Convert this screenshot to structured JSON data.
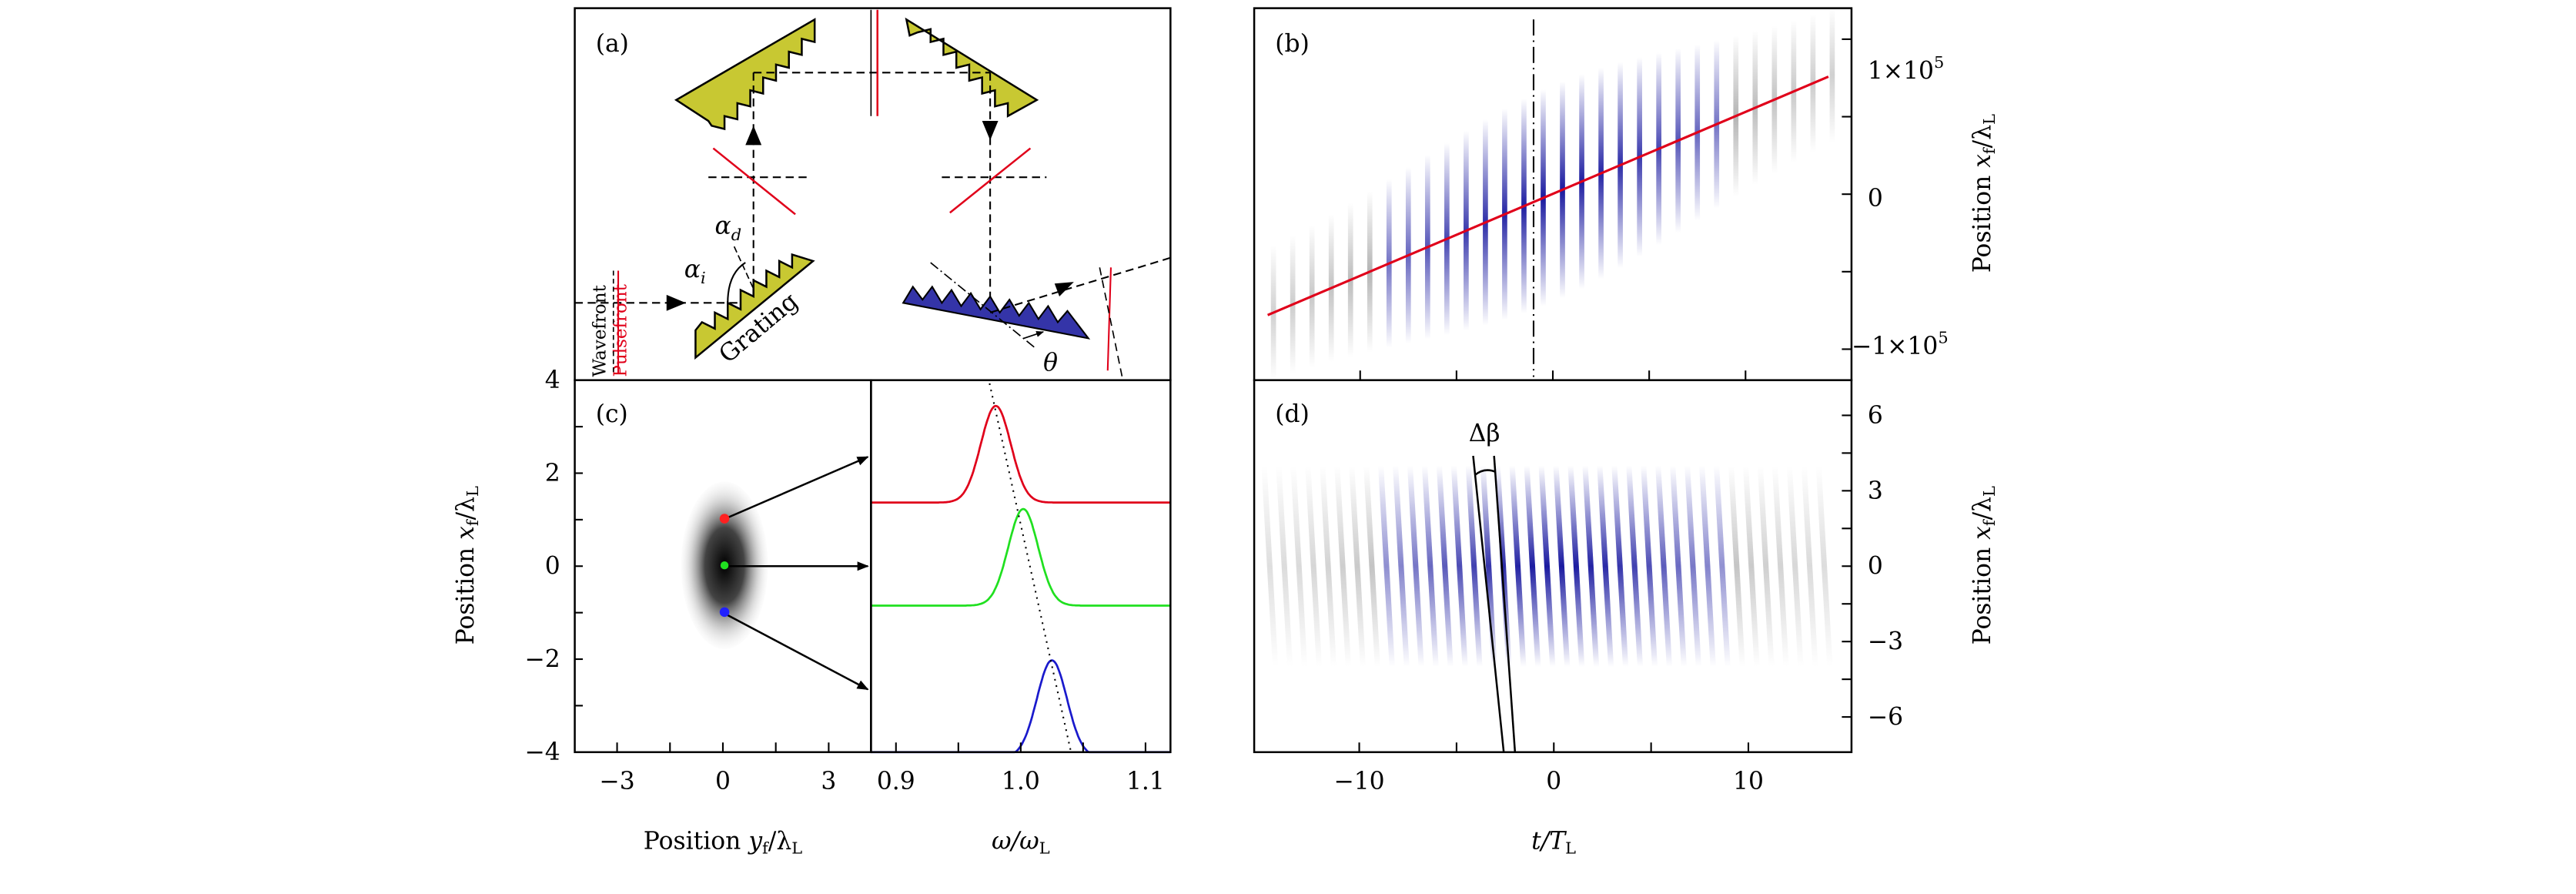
{
  "colors": {
    "grating_upper": "#c8c832",
    "grating_output": "#3434a8",
    "pulsefront": "#e0001a",
    "stripe_center": "#1a1aa0",
    "stripe_edge": "#888888",
    "dot_top": "#ff2020",
    "dot_mid": "#20e020",
    "dot_bottom": "#2020ff"
  },
  "panel_a": {
    "label": "(a)",
    "alpha_d": "α",
    "alpha_d_sub": "d",
    "alpha_i": "α",
    "alpha_i_sub": "i",
    "theta": "θ",
    "grating": "Grating",
    "wavefront": "Wavefront",
    "pulsefront": "Pulsefront"
  },
  "chart_data": [
    {
      "panel": "(b)",
      "type": "heatmap",
      "xlabel": "t/T_L",
      "ylabel": "Position x_f/λ_L",
      "xlim": [
        -15.5,
        15.5
      ],
      "ylim": [
        -120000.0,
        120000.0
      ],
      "yticks": [
        "1×10^5",
        "0",
        "−1×10^5"
      ],
      "line": {
        "color": "#e0001a",
        "x": [
          -14.8,
          14.3
        ],
        "y": [
          -78000,
          75800
        ]
      },
      "vline_dashed_x": -1
    },
    {
      "panel": "(c)",
      "type": "heatmap",
      "xlabel": "Position y_f/λ_L",
      "ylabel": "Position x_f/λ_L",
      "xlim": [
        -4.2,
        4.2
      ],
      "ylim": [
        -4,
        4
      ],
      "xticks": [
        "−3",
        "0",
        "3"
      ],
      "yticks": [
        "4",
        "2",
        "0",
        "−2",
        "−4"
      ],
      "points": [
        {
          "x": 0,
          "y": 1,
          "color": "red"
        },
        {
          "x": 0,
          "y": 0,
          "color": "green"
        },
        {
          "x": 0,
          "y": -1,
          "color": "blue"
        }
      ]
    },
    {
      "panel": "(c) spectra",
      "type": "line",
      "xlabel": "ω/ω_L",
      "xlim": [
        0.88,
        1.12
      ],
      "xticks": [
        "0.9",
        "1.0",
        "1.1"
      ],
      "series": [
        {
          "color": "red",
          "peak": 0.98
        },
        {
          "color": "green",
          "peak": 1.002
        },
        {
          "color": "blue",
          "peak": 1.025
        }
      ]
    },
    {
      "panel": "(d)",
      "type": "heatmap",
      "xlabel": "t/T_L",
      "ylabel": "Position x_f/λ_L",
      "xlim": [
        -15.4,
        15.3
      ],
      "ylim": [
        -7.4,
        7.4
      ],
      "xticks": [
        "−10",
        "0",
        "10"
      ],
      "yticks": [
        "6",
        "3",
        "0",
        "−3",
        "−6"
      ],
      "annotation": "Δβ"
    }
  ],
  "labels": {
    "b": "(b)",
    "c": "(c)",
    "d": "(d)",
    "b_yt0": "1×10",
    "b_yt0_exp": "5",
    "b_yt1": "0",
    "b_yt2": "−1×10",
    "b_yt2_exp": "5",
    "pos": "Position ",
    "x": "x",
    "y": "y",
    "f": "f",
    "lam": "/λ",
    "L": "L",
    "omega": "ω/ω",
    "t": "t",
    "T": "/T",
    "delta_beta": "Δβ",
    "c_y": [
      "4",
      "2",
      "0",
      "−2",
      "−4"
    ],
    "c_x": [
      "−3",
      "0",
      "3"
    ],
    "c_w": [
      "0.9",
      "1.0",
      "1.1"
    ],
    "d_x": [
      "−10",
      "0",
      "10"
    ],
    "d_y": [
      "6",
      "3",
      "0",
      "−3",
      "−6"
    ]
  }
}
